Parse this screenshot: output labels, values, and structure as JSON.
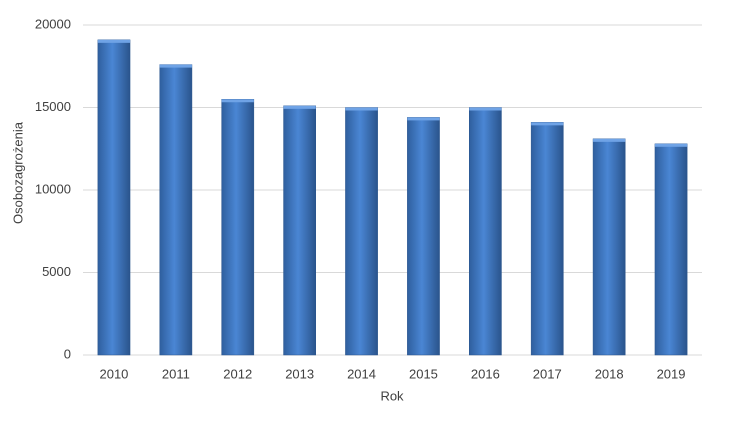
{
  "chart_data": {
    "type": "bar",
    "x_label": "Rok",
    "y_label": "Osobozagrożenia",
    "categories": [
      "2010",
      "2011",
      "2012",
      "2013",
      "2014",
      "2015",
      "2016",
      "2017",
      "2018",
      "2019"
    ],
    "values": [
      19100,
      17600,
      15500,
      15100,
      15000,
      14400,
      15000,
      14100,
      13100,
      12800
    ],
    "color": "#4a86d4",
    "ylim": [
      0,
      20000
    ],
    "yticks": [
      0,
      5000,
      10000,
      15000,
      20000
    ],
    "grid": true
  }
}
